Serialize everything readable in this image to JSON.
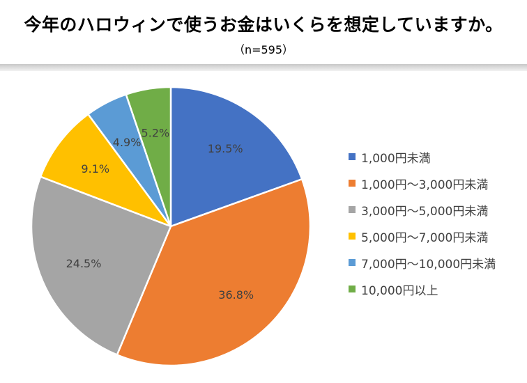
{
  "chart_data": {
    "type": "pie",
    "title": "今年のハロウィンで使うお金はいくらを想定していますか。",
    "subtitle": "（n=595）",
    "categories": [
      "1,000円未満",
      "1,000円～3,000円未満",
      "3,000円～5,000円未満",
      "5,000円～7,000円未満",
      "7,000円～10,000円未満",
      "10,000円以上"
    ],
    "values": [
      19.5,
      36.8,
      24.5,
      9.1,
      4.9,
      5.2
    ],
    "labels": [
      "19.5%",
      "36.8%",
      "24.5%",
      "9.1%",
      "4.9%",
      "5.2%"
    ],
    "colors": [
      "#4472C4",
      "#ED7D31",
      "#A5A5A5",
      "#FFC000",
      "#5B9BD5",
      "#70AD47"
    ],
    "legend_position": "right"
  }
}
